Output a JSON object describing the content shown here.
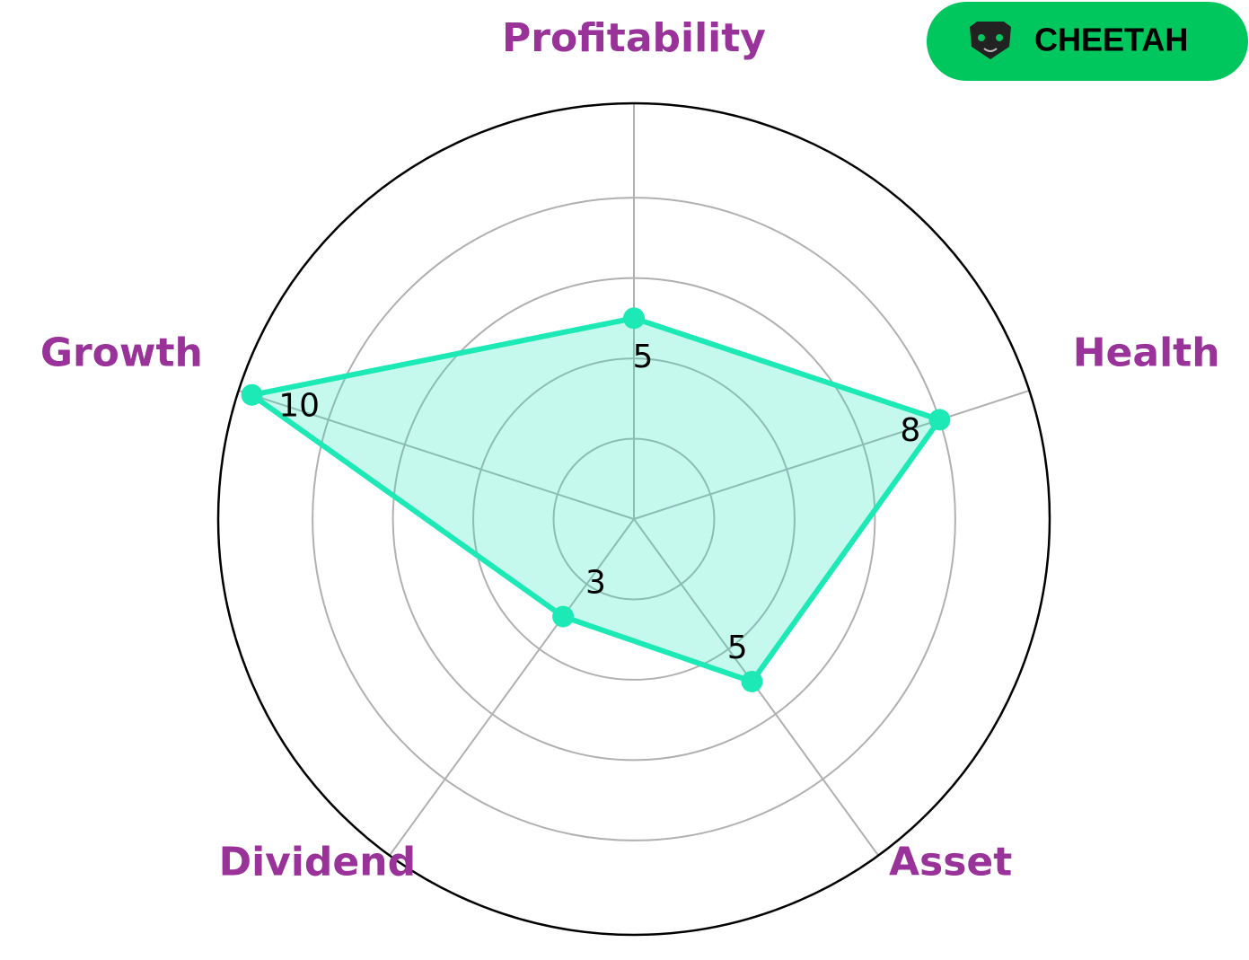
{
  "chart_data": {
    "type": "radar",
    "categories": [
      "Profitability",
      "Health",
      "Asset",
      "Dividend",
      "Growth"
    ],
    "values": [
      5,
      8,
      5,
      3,
      10
    ],
    "color": "#1de9b6",
    "label_color": "#993399",
    "ylim": [
      0,
      10.35
    ],
    "yticks": [
      2,
      4,
      6,
      8
    ],
    "grid": true
  },
  "badge": {
    "label": "CHEETAH",
    "color": "#00c65e"
  }
}
